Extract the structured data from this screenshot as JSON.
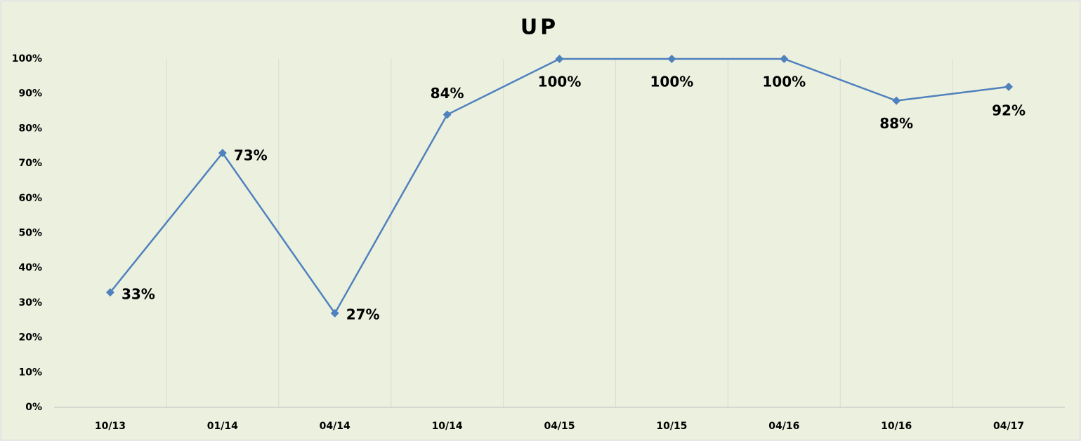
{
  "chart_data": {
    "type": "line",
    "title": "UP",
    "categories": [
      "10/13",
      "01/14",
      "04/14",
      "10/14",
      "04/15",
      "10/15",
      "04/16",
      "10/16",
      "04/17"
    ],
    "series": [
      {
        "name": "UP",
        "color": "#4f81bd",
        "values": [
          33,
          73,
          27,
          84,
          100,
          100,
          100,
          88,
          92
        ],
        "value_labels": [
          "33%",
          "73%",
          "27%",
          "84%",
          "100%",
          "100%",
          "100%",
          "88%",
          "92%"
        ]
      }
    ],
    "ylim": [
      0,
      100
    ],
    "yticks": [
      {
        "value": 0,
        "label": "0%"
      },
      {
        "value": 10,
        "label": "10%"
      },
      {
        "value": 20,
        "label": "20%"
      },
      {
        "value": 30,
        "label": "30%"
      },
      {
        "value": 40,
        "label": "40%"
      },
      {
        "value": 50,
        "label": "50%"
      },
      {
        "value": 60,
        "label": "60%"
      },
      {
        "value": 70,
        "label": "70%"
      },
      {
        "value": 80,
        "label": "80%"
      },
      {
        "value": 90,
        "label": "90%"
      },
      {
        "value": 100,
        "label": "100%"
      }
    ],
    "grid": true
  }
}
